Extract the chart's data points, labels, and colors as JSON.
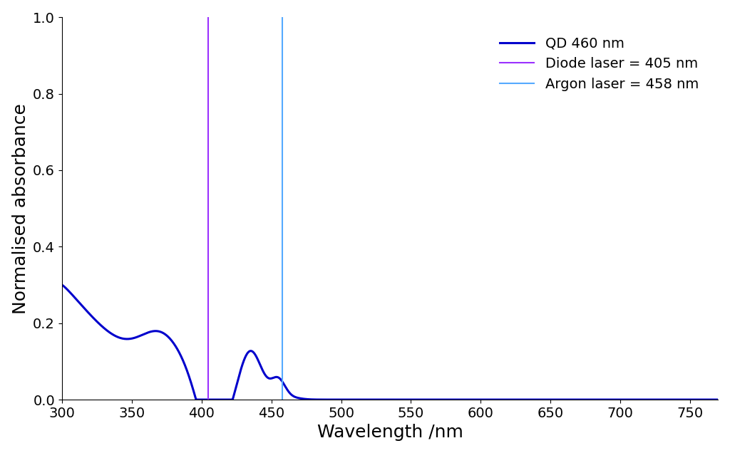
{
  "title": "",
  "xlabel": "Wavelength /nm",
  "ylabel": "Normalised absorbance",
  "xlim": [
    300,
    770
  ],
  "ylim": [
    0,
    1.0
  ],
  "xticks": [
    300,
    350,
    400,
    450,
    500,
    550,
    600,
    650,
    700,
    750
  ],
  "yticks": [
    0,
    0.2,
    0.4,
    0.6,
    0.8,
    1.0
  ],
  "qd_color": "#0000CC",
  "diode_color": "#9B30FF",
  "argon_color": "#55AAFF",
  "diode_wavelength": 405,
  "argon_wavelength": 458,
  "legend_labels": [
    "QD 460 nm",
    "Diode laser = 405 nm",
    "Argon laser = 458 nm"
  ],
  "xlabel_fontsize": 18,
  "ylabel_fontsize": 18,
  "tick_fontsize": 14,
  "legend_fontsize": 14,
  "linewidth_qd": 2.2,
  "linewidth_laser": 1.5
}
